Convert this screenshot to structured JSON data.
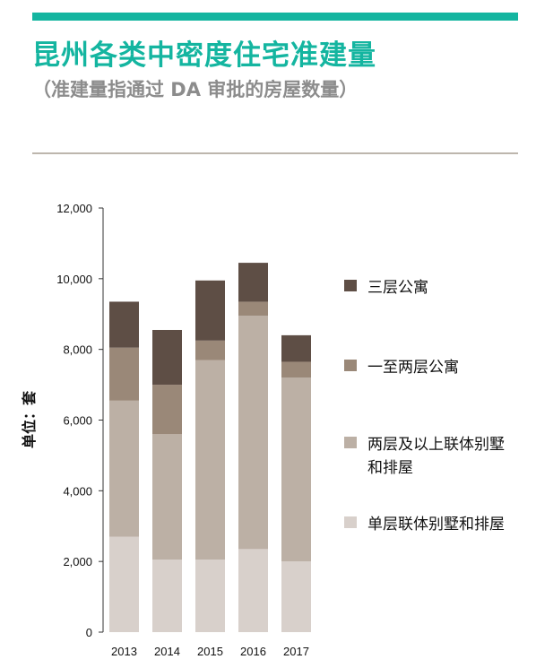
{
  "title": "昆州各类中密度住宅准建量",
  "subtitle": "（准建量指通过 DA 审批的房屋数量）",
  "colors": {
    "accent": "#14b5a0",
    "title": "#14b5a0",
    "series": [
      "#d8d0cb",
      "#bcb0a5",
      "#9a8878",
      "#5e4e45"
    ]
  },
  "chart_data": {
    "type": "bar",
    "stacked": true,
    "categories": [
      "2013",
      "2014",
      "2015",
      "2016",
      "2017"
    ],
    "ylabel": "单位：套",
    "ylim": [
      0,
      12000
    ],
    "yticks": [
      "0",
      "2,000",
      "4,000",
      "6,000",
      "8,000",
      "10,000",
      "12,000"
    ],
    "grid": false,
    "legend_position": "right",
    "series": [
      {
        "name": "单层联体别墅和排屋",
        "values": [
          2700,
          2050,
          2050,
          2350,
          2000
        ]
      },
      {
        "name": "两层及以上联体别墅和排屋",
        "values": [
          3850,
          3550,
          5650,
          6600,
          5200
        ]
      },
      {
        "name": "一至两层公寓",
        "values": [
          1500,
          1400,
          550,
          400,
          450
        ]
      },
      {
        "name": "三层公寓",
        "values": [
          1300,
          1550,
          1700,
          1100,
          750
        ]
      }
    ]
  }
}
